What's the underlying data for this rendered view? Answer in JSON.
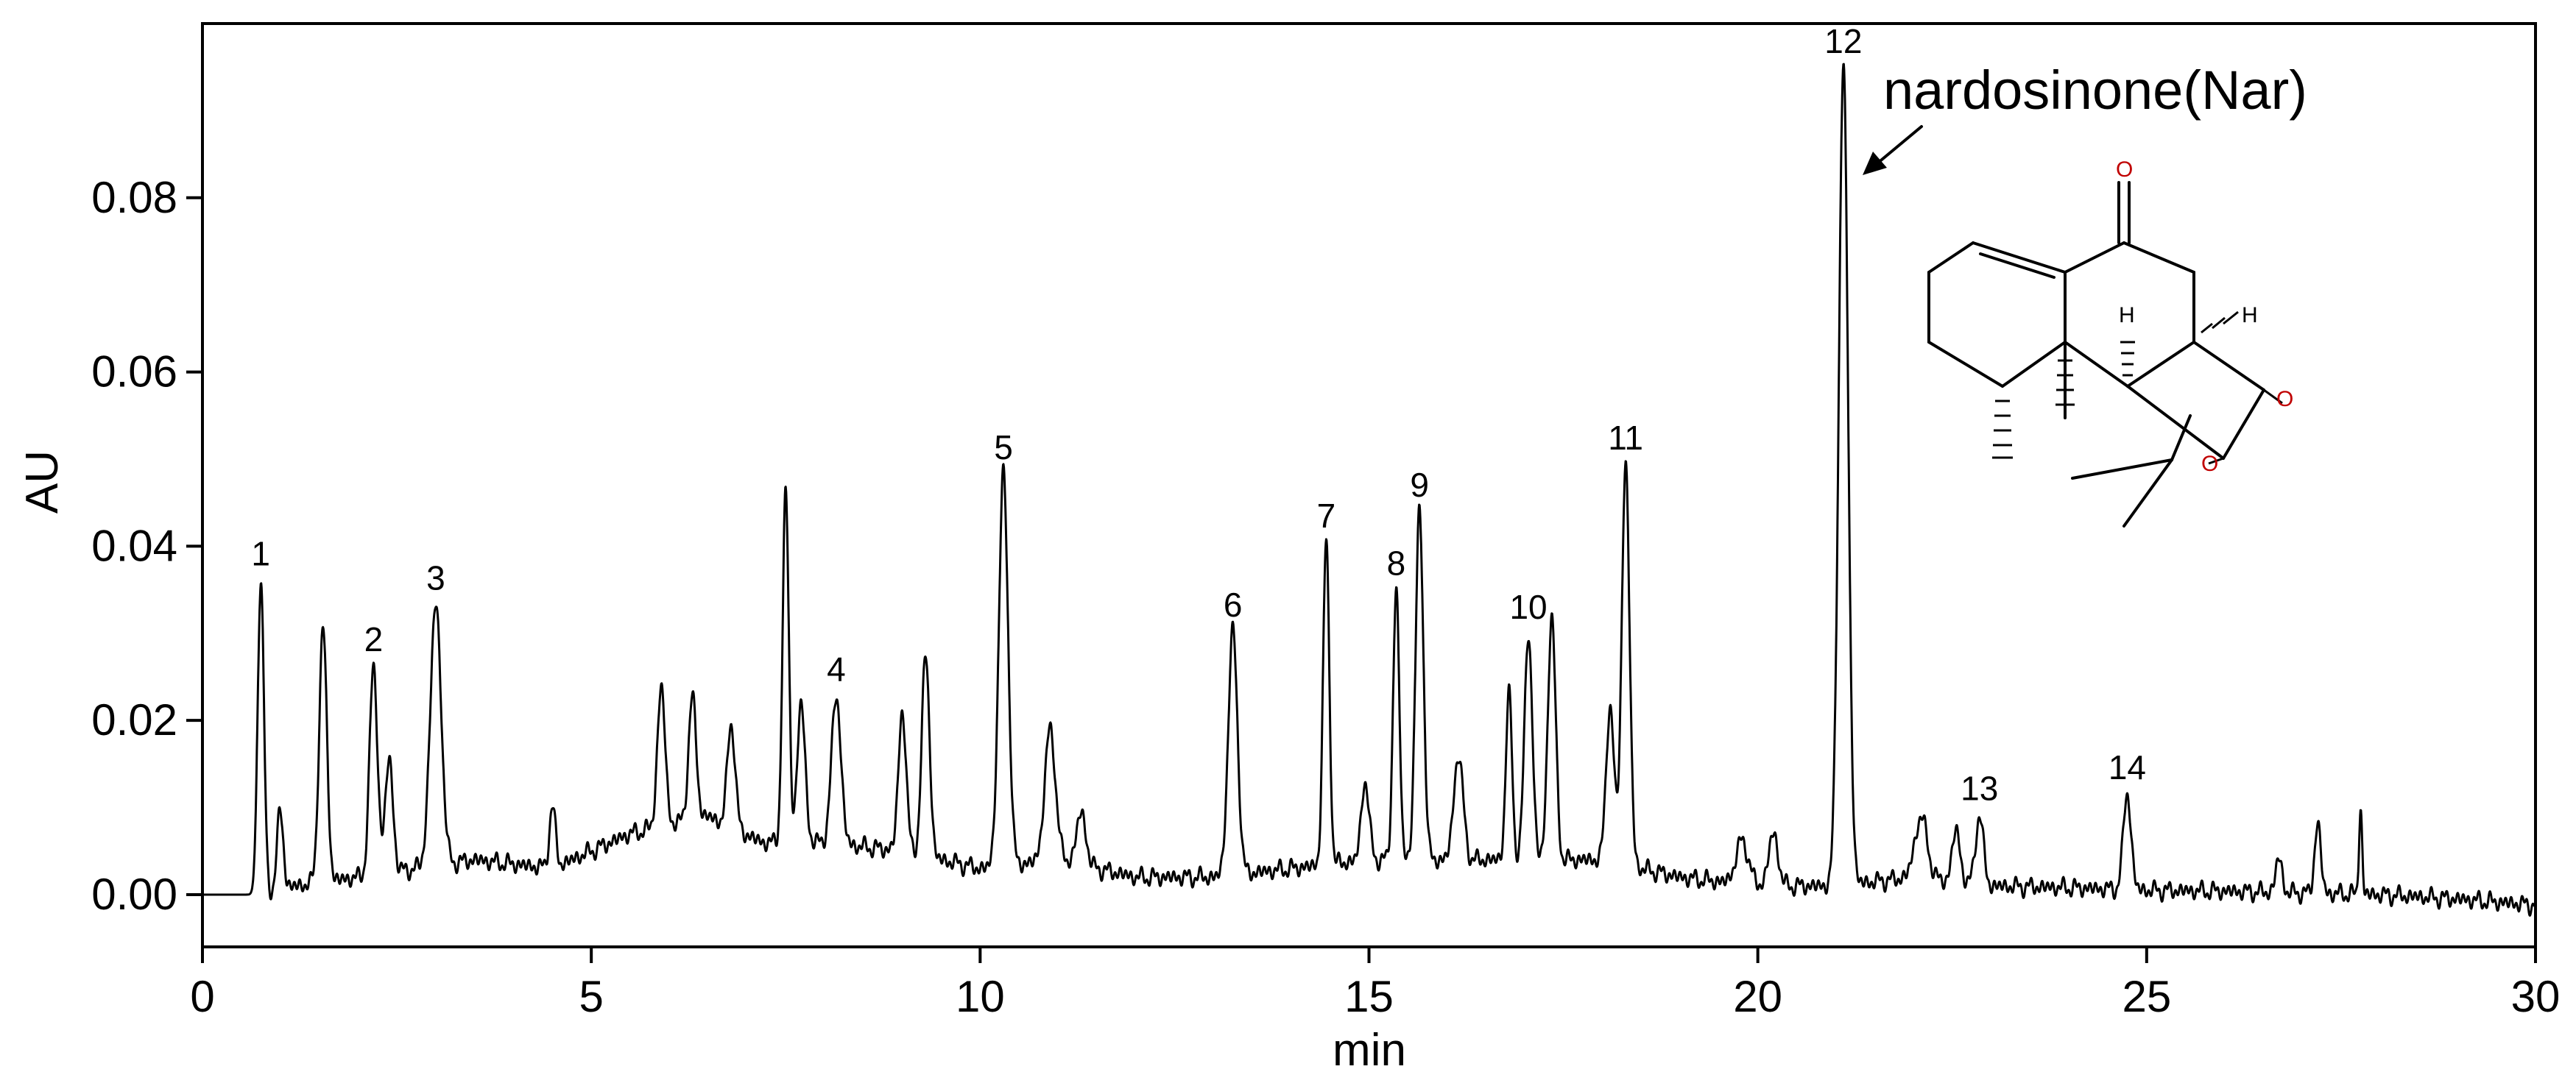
{
  "chart_data": {
    "type": "line",
    "xlabel": "min",
    "ylabel": "AU",
    "xlim": [
      0,
      30
    ],
    "ylim": [
      -0.006,
      0.1
    ],
    "x_ticks": [
      "0",
      "5",
      "10",
      "15",
      "20",
      "25",
      "30"
    ],
    "x_tick_values": [
      0,
      5,
      10,
      15,
      20,
      25,
      30
    ],
    "y_ticks": [
      "0.00",
      "0.02",
      "0.04",
      "0.06",
      "0.08"
    ],
    "y_tick_values": [
      0,
      0.02,
      0.04,
      0.06,
      0.08
    ],
    "grid": false,
    "baseline_points": [
      [
        0,
        0
      ],
      [
        0.7,
        0
      ],
      [
        1.2,
        0.001
      ],
      [
        2.0,
        0.002
      ],
      [
        3.5,
        0.004
      ],
      [
        4.5,
        0.003
      ],
      [
        5.5,
        0.007
      ],
      [
        6.5,
        0.009
      ],
      [
        7.2,
        0.006
      ],
      [
        8.0,
        0.006
      ],
      [
        9.0,
        0.005
      ],
      [
        10.0,
        0.003
      ],
      [
        11.0,
        0.004
      ],
      [
        12.0,
        0.002
      ],
      [
        13.0,
        0.002
      ],
      [
        14.0,
        0.003
      ],
      [
        15.0,
        0.004
      ],
      [
        16.0,
        0.004
      ],
      [
        17.0,
        0.004
      ],
      [
        18.0,
        0.004
      ],
      [
        19.0,
        0.002
      ],
      [
        20.0,
        0.001
      ],
      [
        21.0,
        0.001
      ],
      [
        22.0,
        0.002
      ],
      [
        23.0,
        0.001
      ],
      [
        24.0,
        0.0008
      ],
      [
        25.0,
        0.0005
      ],
      [
        26.0,
        0.0004
      ],
      [
        27.0,
        0.0002
      ],
      [
        28.0,
        0.0
      ],
      [
        29.0,
        -0.0005
      ],
      [
        30.0,
        -0.0012
      ]
    ],
    "peaks": [
      {
        "label": "1",
        "rt": 0.75,
        "height": 0.036,
        "width": 0.04
      },
      {
        "label": "",
        "rt": 1.0,
        "height": 0.009,
        "width": 0.04
      },
      {
        "label": "",
        "rt": 1.55,
        "height": 0.029,
        "width": 0.05
      },
      {
        "label": "2",
        "rt": 2.2,
        "height": 0.024,
        "width": 0.05
      },
      {
        "label": "",
        "rt": 2.4,
        "height": 0.013,
        "width": 0.05
      },
      {
        "label": "3",
        "rt": 3.0,
        "height": 0.03,
        "width": 0.07
      },
      {
        "label": "",
        "rt": 4.5,
        "height": 0.007,
        "width": 0.04
      },
      {
        "label": "",
        "rt": 5.9,
        "height": 0.016,
        "width": 0.05
      },
      {
        "label": "",
        "rt": 6.3,
        "height": 0.014,
        "width": 0.05
      },
      {
        "label": "",
        "rt": 6.8,
        "height": 0.012,
        "width": 0.05
      },
      {
        "label": "",
        "rt": 7.5,
        "height": 0.04,
        "width": 0.04
      },
      {
        "label": "",
        "rt": 7.7,
        "height": 0.016,
        "width": 0.05
      },
      {
        "label": "4",
        "rt": 8.15,
        "height": 0.017,
        "width": 0.06
      },
      {
        "label": "",
        "rt": 9.0,
        "height": 0.016,
        "width": 0.05
      },
      {
        "label": "",
        "rt": 9.3,
        "height": 0.023,
        "width": 0.05
      },
      {
        "label": "5",
        "rt": 10.3,
        "height": 0.045,
        "width": 0.06
      },
      {
        "label": "",
        "rt": 10.9,
        "height": 0.015,
        "width": 0.07
      },
      {
        "label": "",
        "rt": 11.3,
        "height": 0.006,
        "width": 0.06
      },
      {
        "label": "6",
        "rt": 13.25,
        "height": 0.028,
        "width": 0.06
      },
      {
        "label": "7",
        "rt": 14.45,
        "height": 0.037,
        "width": 0.04
      },
      {
        "label": "",
        "rt": 14.95,
        "height": 0.009,
        "width": 0.05
      },
      {
        "label": "8",
        "rt": 15.35,
        "height": 0.031,
        "width": 0.04
      },
      {
        "label": "9",
        "rt": 15.65,
        "height": 0.04,
        "width": 0.05
      },
      {
        "label": "",
        "rt": 16.15,
        "height": 0.012,
        "width": 0.06
      },
      {
        "label": "",
        "rt": 16.8,
        "height": 0.019,
        "width": 0.04
      },
      {
        "label": "10",
        "rt": 17.05,
        "height": 0.026,
        "width": 0.05
      },
      {
        "label": "",
        "rt": 17.35,
        "height": 0.028,
        "width": 0.05
      },
      {
        "label": "",
        "rt": 18.1,
        "height": 0.018,
        "width": 0.05
      },
      {
        "label": "11",
        "rt": 18.3,
        "height": 0.046,
        "width": 0.05
      },
      {
        "label": "",
        "rt": 19.8,
        "height": 0.005,
        "width": 0.08
      },
      {
        "label": "",
        "rt": 20.2,
        "height": 0.006,
        "width": 0.06
      },
      {
        "label": "12",
        "rt": 21.1,
        "height": 0.094,
        "width": 0.06
      },
      {
        "label": "",
        "rt": 22.1,
        "height": 0.007,
        "width": 0.08
      },
      {
        "label": "",
        "rt": 22.55,
        "height": 0.006,
        "width": 0.05
      },
      {
        "label": "13",
        "rt": 22.85,
        "height": 0.008,
        "width": 0.05
      },
      {
        "label": "14",
        "rt": 24.75,
        "height": 0.011,
        "width": 0.05
      },
      {
        "label": "",
        "rt": 26.7,
        "height": 0.004,
        "width": 0.04
      },
      {
        "label": "",
        "rt": 27.2,
        "height": 0.008,
        "width": 0.04
      },
      {
        "label": "",
        "rt": 27.75,
        "height": 0.01,
        "width": 0.02
      }
    ],
    "annotation": {
      "text": "nardosinone(Nar)",
      "target_peak": "12"
    }
  },
  "structure": {
    "atoms": {
      "ketone_o": "O",
      "ring_o1": "O",
      "ring_o2": "O",
      "h_left": "H",
      "h_right": "H"
    }
  }
}
